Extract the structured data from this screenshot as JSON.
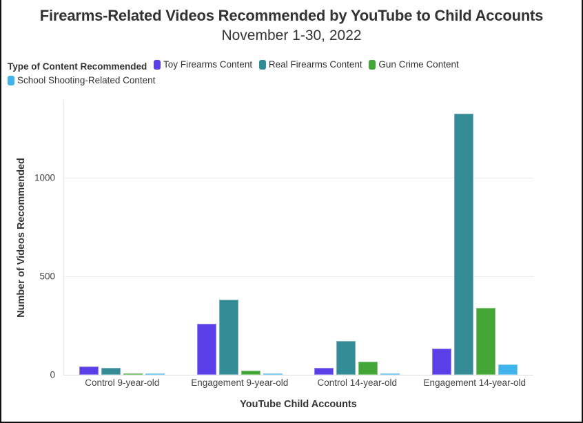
{
  "header": {
    "title": "Firearms-Related Videos Recommended by YouTube to Child Accounts",
    "subtitle": "November 1-30, 2022"
  },
  "legend": {
    "title": "Type of Content Recommended",
    "items": [
      {
        "label": "Toy Firearms Content",
        "color": "#5B3FE8"
      },
      {
        "label": "Real Firearms Content",
        "color": "#338B96"
      },
      {
        "label": "Gun Crime Content",
        "color": "#43A637"
      },
      {
        "label": "School Shooting-Related Content",
        "color": "#41B4EE"
      }
    ]
  },
  "axes": {
    "xlabel": "YouTube Child Accounts",
    "ylabel": "Number of Videos Recommended",
    "yticks": [
      "0",
      "500",
      "1000"
    ]
  },
  "chart_data": {
    "type": "bar",
    "title": "Firearms-Related Videos Recommended by YouTube to Child Accounts",
    "subtitle": "November 1-30, 2022",
    "xlabel": "YouTube Child Accounts",
    "ylabel": "Number of Videos Recommended",
    "categories": [
      "Control 9-year-old",
      "Engagement 9-year-old",
      "Control 14-year-old",
      "Engagement 14-year-old"
    ],
    "series": [
      {
        "name": "Toy Firearms Content",
        "color": "#5B3FE8",
        "values": [
          42,
          259,
          35,
          133
        ]
      },
      {
        "name": "Real Firearms Content",
        "color": "#338B96",
        "values": [
          35,
          382,
          172,
          1325
        ]
      },
      {
        "name": "Gun Crime Content",
        "color": "#43A637",
        "values": [
          2,
          20,
          66,
          340
        ]
      },
      {
        "name": "School Shooting-Related Content",
        "color": "#41B4EE",
        "values": [
          0,
          0,
          7,
          52
        ]
      }
    ],
    "yticks": [
      0,
      500,
      1000
    ],
    "ylim": [
      0,
      1400
    ],
    "grid": true,
    "legend_position": "top-left",
    "legend_title": "Type of Content Recommended"
  }
}
